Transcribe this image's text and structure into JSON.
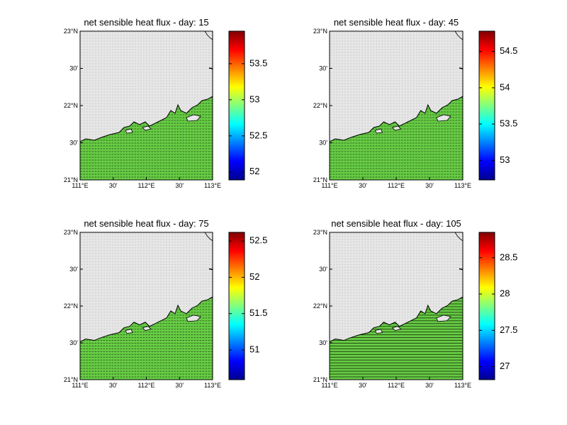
{
  "panels": [
    {
      "title": "net sensible heat flux - day: 15",
      "colorbar": {
        "clim": [
          51.89,
          53.95
        ],
        "ticks": [
          52,
          52.5,
          53,
          53.5
        ]
      }
    },
    {
      "title": "net sensible heat flux - day: 45",
      "colorbar": {
        "clim": [
          52.73,
          54.78
        ],
        "ticks": [
          53,
          53.5,
          54,
          54.5
        ]
      }
    },
    {
      "title": "net sensible heat flux - day: 75",
      "colorbar": {
        "clim": [
          50.59,
          52.62
        ],
        "ticks": [
          51,
          51.5,
          52,
          52.5
        ]
      }
    },
    {
      "title": "net sensible heat flux - day: 105",
      "colorbar": {
        "clim": [
          26.82,
          28.85
        ],
        "ticks": [
          27,
          27.5,
          28,
          28.5
        ]
      }
    }
  ],
  "lat_labels": [
    "23°N",
    "30'",
    "22°N",
    "30'",
    "21°N"
  ],
  "lon_labels": [
    "111°E",
    "30'",
    "112°E",
    "30'",
    "113°E"
  ]
}
